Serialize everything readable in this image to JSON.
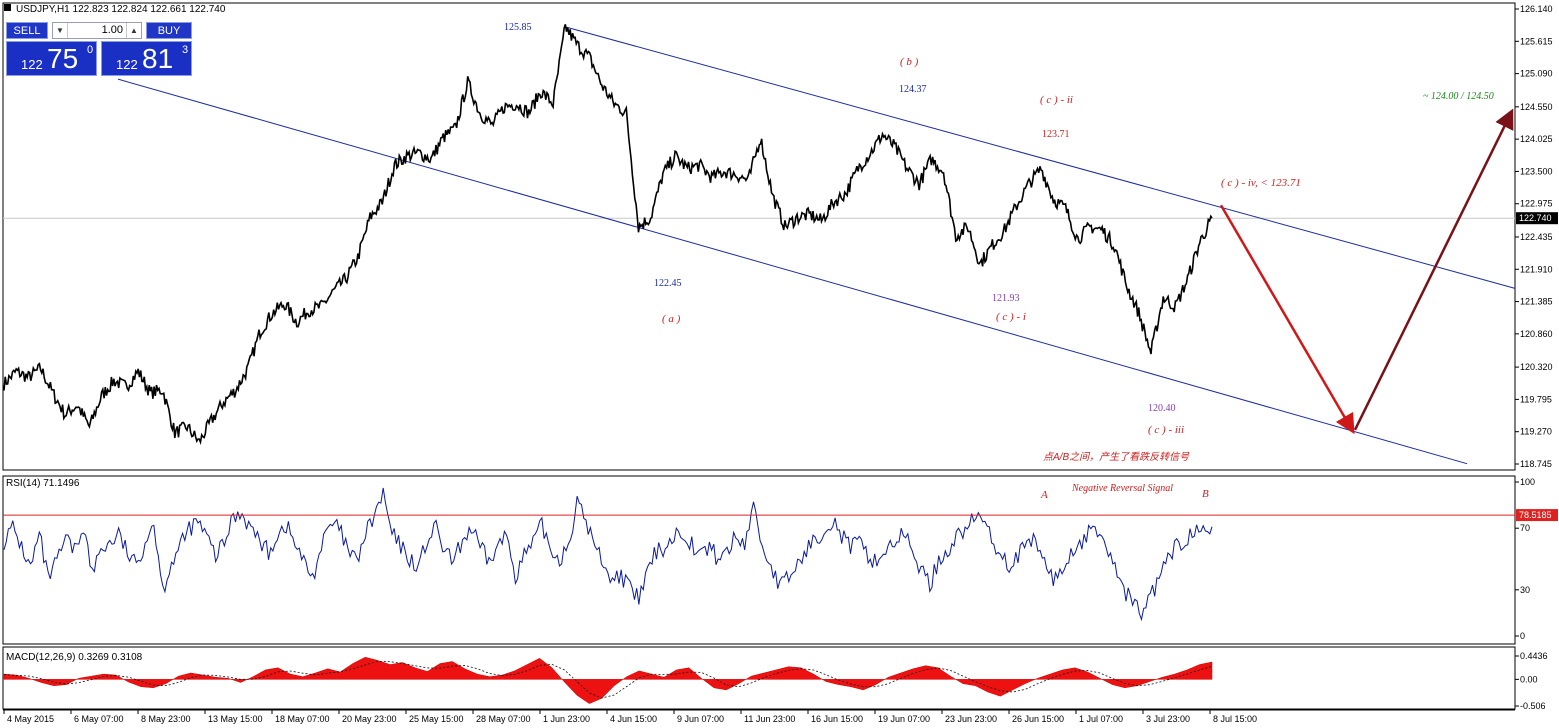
{
  "symbol_header": "USDJPY,H1  122.823 122.824 122.661 122.740",
  "trade_panel": {
    "sell_label": "SELL",
    "buy_label": "BUY",
    "lot": "1.00",
    "sell_price_small": "122",
    "sell_price_big": "75",
    "sell_price_sup": "0",
    "buy_price_small": "122",
    "buy_price_big": "81",
    "buy_price_sup": "3"
  },
  "chart_data": [
    {
      "type": "line",
      "name": "price",
      "current_price": 122.74,
      "current_price_label": "122.740",
      "ylim": [
        118.745,
        126.14
      ],
      "y_ticks": [
        "126.140",
        "125.615",
        "125.090",
        "124.550",
        "124.025",
        "123.500",
        "122.975",
        "122.435",
        "121.910",
        "121.385",
        "120.860",
        "120.320",
        "119.795",
        "119.270",
        "118.745"
      ],
      "x_ticks": [
        "4 May 2015",
        "6 May 07:00",
        "8 May 23:00",
        "13 May 15:00",
        "18 May 07:00",
        "20 May 23:00",
        "25 May 15:00",
        "28 May 07:00",
        "1 Jun 23:00",
        "4 Jun 15:00",
        "9 Jun 07:00",
        "11 Jun 23:00",
        "16 Jun 15:00",
        "19 Jun 07:00",
        "23 Jun 23:00",
        "26 Jun 15:00",
        "1 Jul 07:00",
        "3 Jul 23:00",
        "8 Jul 15:00"
      ],
      "close_path": [
        [
          "4 May 2015",
          120.05
        ],
        [
          "4 May 2015",
          120.25
        ],
        [
          "5 May",
          120.15
        ],
        [
          "5 May",
          120.3
        ],
        [
          "6 May 07:00",
          119.9
        ],
        [
          "6 May 07:00",
          119.55
        ],
        [
          "7 May",
          119.7
        ],
        [
          "7 May",
          119.35
        ],
        [
          "8 May",
          119.85
        ],
        [
          "8 May 23:00",
          120.1
        ],
        [
          "11 May",
          120.0
        ],
        [
          "11 May",
          120.25
        ],
        [
          "12 May",
          119.9
        ],
        [
          "12 May",
          119.95
        ],
        [
          "13 May 15:00",
          119.25
        ],
        [
          "13 May 15:00",
          119.35
        ],
        [
          "14 May",
          119.1
        ],
        [
          "14 May",
          119.45
        ],
        [
          "15 May",
          119.75
        ],
        [
          "15 May",
          119.95
        ],
        [
          "18 May 07:00",
          120.3
        ],
        [
          "18 May 07:00",
          120.9
        ],
        [
          "19 May",
          121.2
        ],
        [
          "19 May",
          121.35
        ],
        [
          "20 May",
          121.05
        ],
        [
          "20 May 23:00",
          121.25
        ],
        [
          "21 May",
          121.3
        ],
        [
          "21 May",
          121.55
        ],
        [
          "22 May",
          121.75
        ],
        [
          "22 May",
          122.1
        ],
        [
          "25 May 15:00",
          122.75
        ],
        [
          "25 May 15:00",
          123.0
        ],
        [
          "26 May",
          123.6
        ],
        [
          "26 May",
          123.75
        ],
        [
          "27 May",
          123.8
        ],
        [
          "27 May",
          123.7
        ],
        [
          "28 May 07:00",
          124.05
        ],
        [
          "28 May 07:00",
          124.2
        ],
        [
          "29 May",
          124.95
        ],
        [
          "29 May",
          124.45
        ],
        [
          "1 Jun",
          124.25
        ],
        [
          "1 Jun 23:00",
          124.55
        ],
        [
          "2 Jun",
          124.6
        ],
        [
          "2 Jun",
          124.45
        ],
        [
          "3 Jun",
          124.8
        ],
        [
          "3 Jun",
          124.6
        ],
        [
          "4 Jun 15:00",
          125.85
        ],
        [
          "4 Jun 15:00",
          125.55
        ],
        [
          "5 Jun",
          125.35
        ],
        [
          "5 Jun",
          124.9
        ],
        [
          "8 Jun",
          124.6
        ],
        [
          "8 Jun",
          124.45
        ],
        [
          "9 Jun 07:00",
          122.6
        ],
        [
          "9 Jun 07:00",
          122.75
        ],
        [
          "10 Jun",
          123.45
        ],
        [
          "10 Jun",
          123.75
        ],
        [
          "11 Jun",
          123.55
        ],
        [
          "11 Jun 23:00",
          123.6
        ],
        [
          "12 Jun",
          123.4
        ],
        [
          "12 Jun",
          123.5
        ],
        [
          "15 Jun",
          123.45
        ],
        [
          "15 Jun",
          123.35
        ],
        [
          "16 Jun 15:00",
          124.05
        ],
        [
          "16 Jun 15:00",
          123.1
        ],
        [
          "17 Jun",
          122.6
        ],
        [
          "17 Jun",
          122.75
        ],
        [
          "18 Jun",
          122.8
        ],
        [
          "18 Jun",
          122.7
        ],
        [
          "19 Jun 07:00",
          123.0
        ],
        [
          "19 Jun 07:00",
          123.15
        ],
        [
          "22 Jun",
          123.55
        ],
        [
          "22 Jun",
          123.8
        ],
        [
          "23 Jun",
          124.1
        ],
        [
          "23 Jun 23:00",
          123.9
        ],
        [
          "24 Jun",
          123.55
        ],
        [
          "24 Jun",
          123.3
        ],
        [
          "25 Jun",
          123.7
        ],
        [
          "25 Jun",
          123.5
        ],
        [
          "26 Jun 15:00",
          122.45
        ],
        [
          "26 Jun 15:00",
          122.6
        ],
        [
          "29 Jun",
          122.0
        ],
        [
          "29 Jun",
          122.3
        ],
        [
          "30 Jun",
          122.55
        ],
        [
          "30 Jun",
          122.95
        ],
        [
          "1 Jul 07:00",
          123.3
        ],
        [
          "1 Jul 07:00",
          123.55
        ],
        [
          "2 Jul",
          123.05
        ],
        [
          "2 Jul",
          122.9
        ],
        [
          "3 Jul",
          122.4
        ],
        [
          "3 Jul 23:00",
          122.6
        ],
        [
          "6 Jul",
          122.55
        ],
        [
          "6 Jul",
          122.3
        ],
        [
          "7 Jul",
          121.65
        ],
        [
          "7 Jul",
          121.2
        ],
        [
          "8 Jul",
          120.55
        ],
        [
          "8 Jul 15:00",
          121.45
        ],
        [
          "9 Jul",
          121.3
        ],
        [
          "9 Jul",
          121.75
        ],
        [
          "10 Jul",
          122.35
        ],
        [
          "10 Jul",
          122.74
        ]
      ],
      "price_labels": [
        {
          "text": "125.85",
          "x": "4 Jun",
          "y": 125.85
        },
        {
          "text": "124.37",
          "x": "19 Jun 07:00",
          "y": 124.37
        },
        {
          "text": "123.71",
          "x": "1 Jul 07:00",
          "y": 123.71
        },
        {
          "text": "122.45",
          "x": "9 Jun 07:00",
          "y": 122.45
        },
        {
          "text": "121.93",
          "x": "26 Jun 15:00",
          "y": 121.93
        },
        {
          "text": "120.40",
          "x": "8 Jul",
          "y": 120.4
        }
      ],
      "wave_labels": [
        "( b )",
        "( c ) - ii",
        "( c ) - iv,  < 123.71",
        "( a )",
        "( c ) - i",
        "( c ) - iii"
      ],
      "target_label": "~ 124.00 / 124.50",
      "chinese_note": "点A/B之间，产生了看跌反转信号",
      "channel": {
        "upper": [
          [
            "4 Jun 15:00",
            125.85
          ],
          [
            "Right edge",
            121.6
          ]
        ],
        "lower": [
          [
            "4 May 2015",
            125.0
          ],
          [
            "Right edge",
            118.75
          ]
        ]
      },
      "projection": {
        "down": [
          [
            "10 Jul",
            122.95
          ],
          [
            "Projection low",
            119.3
          ]
        ],
        "up": [
          [
            "Projection low",
            119.3
          ],
          [
            "Right edge",
            124.45
          ]
        ]
      }
    },
    {
      "type": "line",
      "name": "RSI",
      "header": "RSI(14) 71.1496",
      "level": 78.5185,
      "level_label": "78.5185",
      "ylim": [
        0,
        100
      ],
      "y_ticks": [
        "100",
        "70",
        "30",
        "0"
      ],
      "labels": {
        "signal": "Negative Reversal Signal",
        "a": "A",
        "b": "B"
      },
      "values": [
        62,
        70,
        58,
        44,
        66,
        37,
        48,
        63,
        55,
        72,
        40,
        57,
        60,
        66,
        54,
        45,
        62,
        74,
        30,
        48,
        58,
        70,
        74,
        64,
        52,
        60,
        78,
        80,
        70,
        62,
        54,
        66,
        72,
        60,
        48,
        38,
        58,
        72,
        70,
        55,
        48,
        66,
        78,
        92,
        66,
        58,
        50,
        45,
        62,
        70,
        54,
        48,
        62,
        70,
        57,
        48,
        58,
        66,
        40,
        52,
        60,
        72,
        56,
        50,
        60,
        86,
        75,
        58,
        48,
        36,
        40,
        30,
        24,
        42,
        55,
        58,
        65,
        68,
        60,
        52,
        58,
        50,
        55,
        64,
        60,
        85,
        58,
        45,
        32,
        38,
        46,
        56,
        62,
        70,
        76,
        65,
        58,
        60,
        52,
        48,
        56,
        62,
        65,
        58,
        42,
        34,
        48,
        56,
        64,
        70,
        75,
        78,
        62,
        55,
        46,
        52,
        58,
        62,
        48,
        36,
        42,
        54,
        60,
        66,
        70,
        58,
        44,
        30,
        22,
        16,
        24,
        38,
        50,
        58,
        62,
        70,
        75,
        71
      ]
    },
    {
      "type": "area",
      "name": "MACD",
      "header": "MACD(12,26,9) 0.3269 0.3108",
      "ylim": [
        -0.506,
        0.4436
      ],
      "y_ticks": [
        "0.4436",
        "0.00",
        "-0.506"
      ],
      "values": [
        0.1,
        0.08,
        0.02,
        -0.06,
        -0.12,
        -0.1,
        0.02,
        0.06,
        0.1,
        0.08,
        -0.05,
        -0.14,
        -0.16,
        -0.08,
        0.06,
        0.12,
        0.08,
        0.04,
        0.02,
        -0.06,
        0.05,
        0.18,
        0.22,
        0.1,
        0.05,
        0.12,
        0.2,
        0.14,
        0.3,
        0.42,
        0.36,
        0.28,
        0.32,
        0.22,
        0.15,
        0.3,
        0.34,
        0.2,
        0.1,
        0.05,
        0.08,
        0.16,
        0.28,
        0.4,
        0.22,
        -0.05,
        -0.3,
        -0.46,
        -0.36,
        -0.12,
        0.05,
        0.16,
        0.1,
        0.04,
        0.18,
        0.22,
        0.02,
        -0.16,
        -0.2,
        -0.08,
        0.06,
        0.12,
        0.18,
        0.24,
        0.22,
        0.1,
        -0.04,
        -0.1,
        -0.14,
        -0.2,
        -0.1,
        0.04,
        0.12,
        0.2,
        0.26,
        0.22,
        0.06,
        -0.08,
        -0.12,
        -0.24,
        -0.32,
        -0.2,
        -0.08,
        0.02,
        0.1,
        0.18,
        0.22,
        0.14,
        0.02,
        -0.1,
        -0.16,
        -0.12,
        -0.04,
        0.04,
        0.1,
        0.18,
        0.28,
        0.33
      ]
    }
  ]
}
